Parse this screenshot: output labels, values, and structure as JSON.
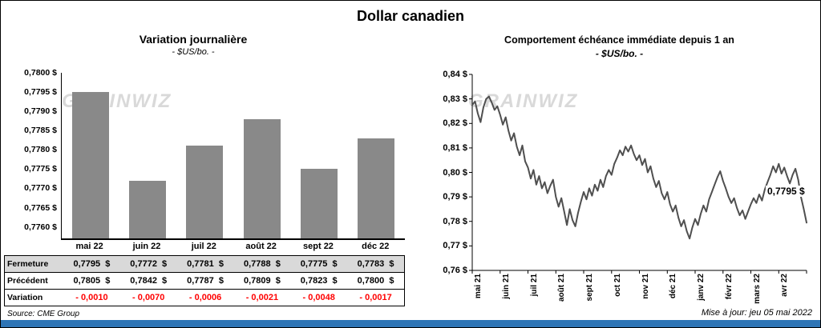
{
  "page": {
    "title": "Dollar canadien",
    "source": "Source: CME Group",
    "updated": "Mise à jour: jeu 05 mai 2022",
    "watermark": "GRAINWIZ",
    "accent_blue": "#2e75b6"
  },
  "chart_data": [
    {
      "type": "bar",
      "title": "Variation  journalière",
      "subtitle": "- $US/bo. -",
      "categories": [
        "mai 22",
        "juin 22",
        "juil 22",
        "août 22",
        "sept 22",
        "déc 22"
      ],
      "values": [
        0.7795,
        0.7772,
        0.7781,
        0.7788,
        0.7775,
        0.7783
      ],
      "ylim": [
        0.7757,
        0.78
      ],
      "y_tick_values": [
        0.78,
        0.7795,
        0.779,
        0.7785,
        0.778,
        0.7775,
        0.777,
        0.7765,
        0.776
      ],
      "y_tick_labels": [
        "0,7800 $",
        "0,7795 $",
        "0,7790 $",
        "0,7785 $",
        "0,7780 $",
        "0,7775 $",
        "0,7770 $",
        "0,7765 $",
        "0,7760 $"
      ],
      "bar_color": "#898989",
      "grid": false,
      "legend": "none"
    },
    {
      "type": "line",
      "title": "Comportement échéance immédiate depuis 1 an",
      "subtitle": "- $US/bo. -",
      "x_labels": [
        "mai 21",
        "juin 21",
        "juil 21",
        "août 21",
        "sept 21",
        "oct 21",
        "nov 21",
        "déc 21",
        "janv 22",
        "févr 22",
        "mars 22",
        "avr 22"
      ],
      "values": [
        0.8275,
        0.829,
        0.824,
        0.8205,
        0.8265,
        0.83,
        0.831,
        0.8285,
        0.8255,
        0.827,
        0.8235,
        0.8195,
        0.8225,
        0.817,
        0.813,
        0.816,
        0.8105,
        0.807,
        0.811,
        0.8045,
        0.802,
        0.7975,
        0.801,
        0.795,
        0.7985,
        0.7935,
        0.796,
        0.7915,
        0.7945,
        0.797,
        0.79,
        0.786,
        0.7895,
        0.784,
        0.7785,
        0.785,
        0.7805,
        0.778,
        0.7835,
        0.788,
        0.792,
        0.789,
        0.7935,
        0.7905,
        0.795,
        0.7925,
        0.797,
        0.794,
        0.7985,
        0.801,
        0.799,
        0.8035,
        0.806,
        0.809,
        0.807,
        0.8105,
        0.8085,
        0.811,
        0.8075,
        0.805,
        0.807,
        0.803,
        0.8055,
        0.8,
        0.8025,
        0.7975,
        0.794,
        0.7965,
        0.7915,
        0.789,
        0.792,
        0.787,
        0.784,
        0.7865,
        0.7815,
        0.778,
        0.7805,
        0.776,
        0.773,
        0.7775,
        0.781,
        0.7785,
        0.783,
        0.7865,
        0.784,
        0.789,
        0.792,
        0.795,
        0.798,
        0.8005,
        0.7965,
        0.7935,
        0.79,
        0.7875,
        0.7895,
        0.7855,
        0.7825,
        0.7845,
        0.781,
        0.784,
        0.787,
        0.7895,
        0.7875,
        0.791,
        0.7885,
        0.793,
        0.796,
        0.799,
        0.8025,
        0.8,
        0.8035,
        0.7995,
        0.802,
        0.7985,
        0.7955,
        0.799,
        0.8015,
        0.797,
        0.79,
        0.785,
        0.7795
      ],
      "ylim": [
        0.76,
        0.84
      ],
      "y_tick_values": [
        0.84,
        0.83,
        0.82,
        0.81,
        0.8,
        0.79,
        0.78,
        0.77,
        0.76
      ],
      "y_tick_labels": [
        "0,84 $",
        "0,83 $",
        "0,82 $",
        "0,81 $",
        "0,80 $",
        "0,79 $",
        "0,78 $",
        "0,77 $",
        "0,76 $"
      ],
      "annotation": "0,7795 $",
      "line_color": "#4f4f4f",
      "grid": false,
      "legend": "none"
    }
  ],
  "table": {
    "rows": [
      {
        "label": "Fermeture",
        "style": "gray",
        "values": [
          "0,7795  $",
          "0,7772  $",
          "0,7781  $",
          "0,7788  $",
          "0,7775  $",
          "0,7783  $"
        ]
      },
      {
        "label": "Précédent",
        "style": "white",
        "values": [
          "0,7805  $",
          "0,7842  $",
          "0,7787  $",
          "0,7809  $",
          "0,7823  $",
          "0,7800  $"
        ]
      },
      {
        "label": "Variation",
        "style": "red",
        "values": [
          "- 0,0010",
          "- 0,0070",
          "- 0,0006",
          "- 0,0021",
          "- 0,0048",
          "- 0,0017"
        ]
      }
    ]
  }
}
